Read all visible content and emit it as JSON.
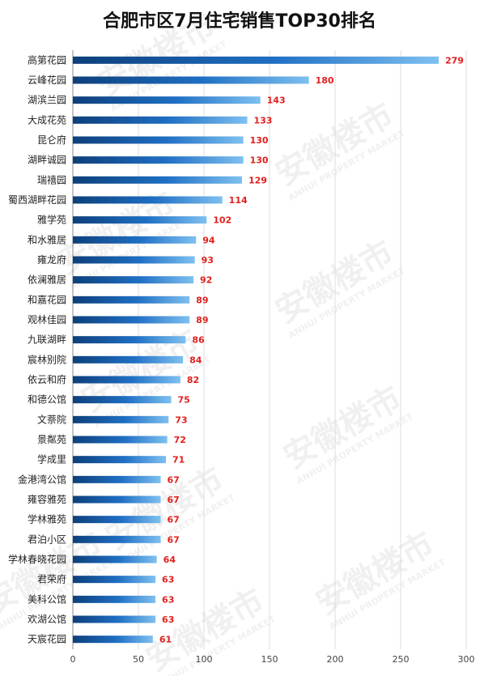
{
  "chart_data": {
    "type": "bar",
    "orientation": "horizontal",
    "title": "合肥市区7月住宅销售TOP30排名",
    "categories": [
      "高第花园",
      "云峰花园",
      "湖滨兰园",
      "大成花苑",
      "昆仑府",
      "湖畔诚园",
      "瑞禧园",
      "蜀西湖畔花园",
      "雅学苑",
      "和水雅居",
      "雍龙府",
      "依澜雅居",
      "和嘉花园",
      "观林佳园",
      "九联湖畔",
      "宸林别院",
      "依云和府",
      "和德公馆",
      "文萘院",
      "景粼苑",
      "学成里",
      "金港湾公馆",
      "雍容雅苑",
      "学林雅苑",
      "君泊小区",
      "学林春晓花园",
      "君荣府",
      "美科公馆",
      "欢湖公馆",
      "天宸花园"
    ],
    "values": [
      279,
      180,
      143,
      133,
      130,
      130,
      129,
      114,
      102,
      94,
      93,
      92,
      89,
      89,
      86,
      84,
      82,
      75,
      73,
      72,
      71,
      67,
      67,
      67,
      67,
      64,
      63,
      63,
      63,
      61
    ],
    "xlim": [
      0,
      300
    ],
    "xticks": [
      0,
      50,
      100,
      150,
      200,
      250,
      300
    ],
    "grid": true,
    "show_data_labels": true,
    "colors": {
      "bar_dark": "#0d3f7a",
      "bar_mid": "#1f6fc4",
      "bar_light": "#7ec0f0",
      "value_label": "#e0201e"
    }
  },
  "watermark": {
    "text": "安徽楼市",
    "subtext": "ANHUI PROPERTY MARKET"
  }
}
